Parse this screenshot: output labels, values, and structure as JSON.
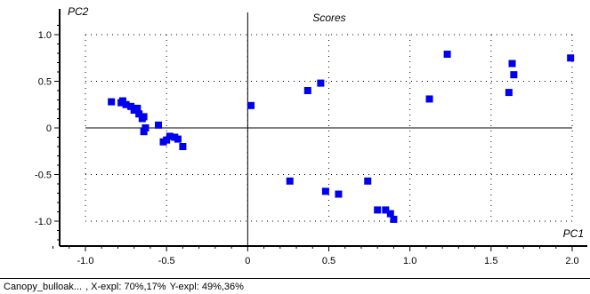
{
  "chart_data": {
    "type": "scatter",
    "title": "Scores",
    "xlabel": "PC1",
    "ylabel": "PC2",
    "xlim": [
      -1.2,
      2.0
    ],
    "ylim": [
      -1.2,
      1.12
    ],
    "xticks": [
      -1.0,
      -0.5,
      0,
      0.5,
      1.0,
      1.5,
      2.0
    ],
    "xtick_labels": [
      "-1.0",
      "-0.5",
      "0",
      "0.5",
      "1.0",
      "1.5",
      "2.0"
    ],
    "yticks": [
      1.0,
      0.5,
      0,
      -0.5,
      -1.0
    ],
    "ytick_labels": [
      "1.0",
      "0.5",
      "0",
      "-0.5",
      "-1.0"
    ],
    "grid": true,
    "marker_color": "#0000ee",
    "points": [
      [
        -0.84,
        0.28
      ],
      [
        -0.78,
        0.27
      ],
      [
        -0.77,
        0.29
      ],
      [
        -0.75,
        0.25
      ],
      [
        -0.72,
        0.23
      ],
      [
        -0.7,
        0.19
      ],
      [
        -0.68,
        0.21
      ],
      [
        -0.67,
        0.15
      ],
      [
        -0.65,
        0.1
      ],
      [
        -0.64,
        0.12
      ],
      [
        -0.63,
        0.0
      ],
      [
        -0.64,
        -0.04
      ],
      [
        -0.55,
        0.03
      ],
      [
        -0.52,
        -0.15
      ],
      [
        -0.5,
        -0.13
      ],
      [
        -0.48,
        -0.09
      ],
      [
        -0.45,
        -0.1
      ],
      [
        -0.43,
        -0.12
      ],
      [
        -0.4,
        -0.2
      ],
      [
        0.02,
        0.24
      ],
      [
        0.37,
        0.4
      ],
      [
        0.45,
        0.48
      ],
      [
        0.26,
        -0.57
      ],
      [
        0.48,
        -0.68
      ],
      [
        0.56,
        -0.71
      ],
      [
        0.74,
        -0.57
      ],
      [
        0.8,
        -0.88
      ],
      [
        0.85,
        -0.88
      ],
      [
        0.88,
        -0.92
      ],
      [
        0.9,
        -0.98
      ],
      [
        1.12,
        0.31
      ],
      [
        1.23,
        0.79
      ],
      [
        1.61,
        0.38
      ],
      [
        1.63,
        0.69
      ],
      [
        1.64,
        0.57
      ],
      [
        1.99,
        0.75
      ]
    ]
  },
  "status_bar": {
    "dataset": "Canopy_bulloak...",
    "x_expl": ", X-expl: 70%,17%",
    "y_expl": "Y-expl: 49%,36%"
  }
}
